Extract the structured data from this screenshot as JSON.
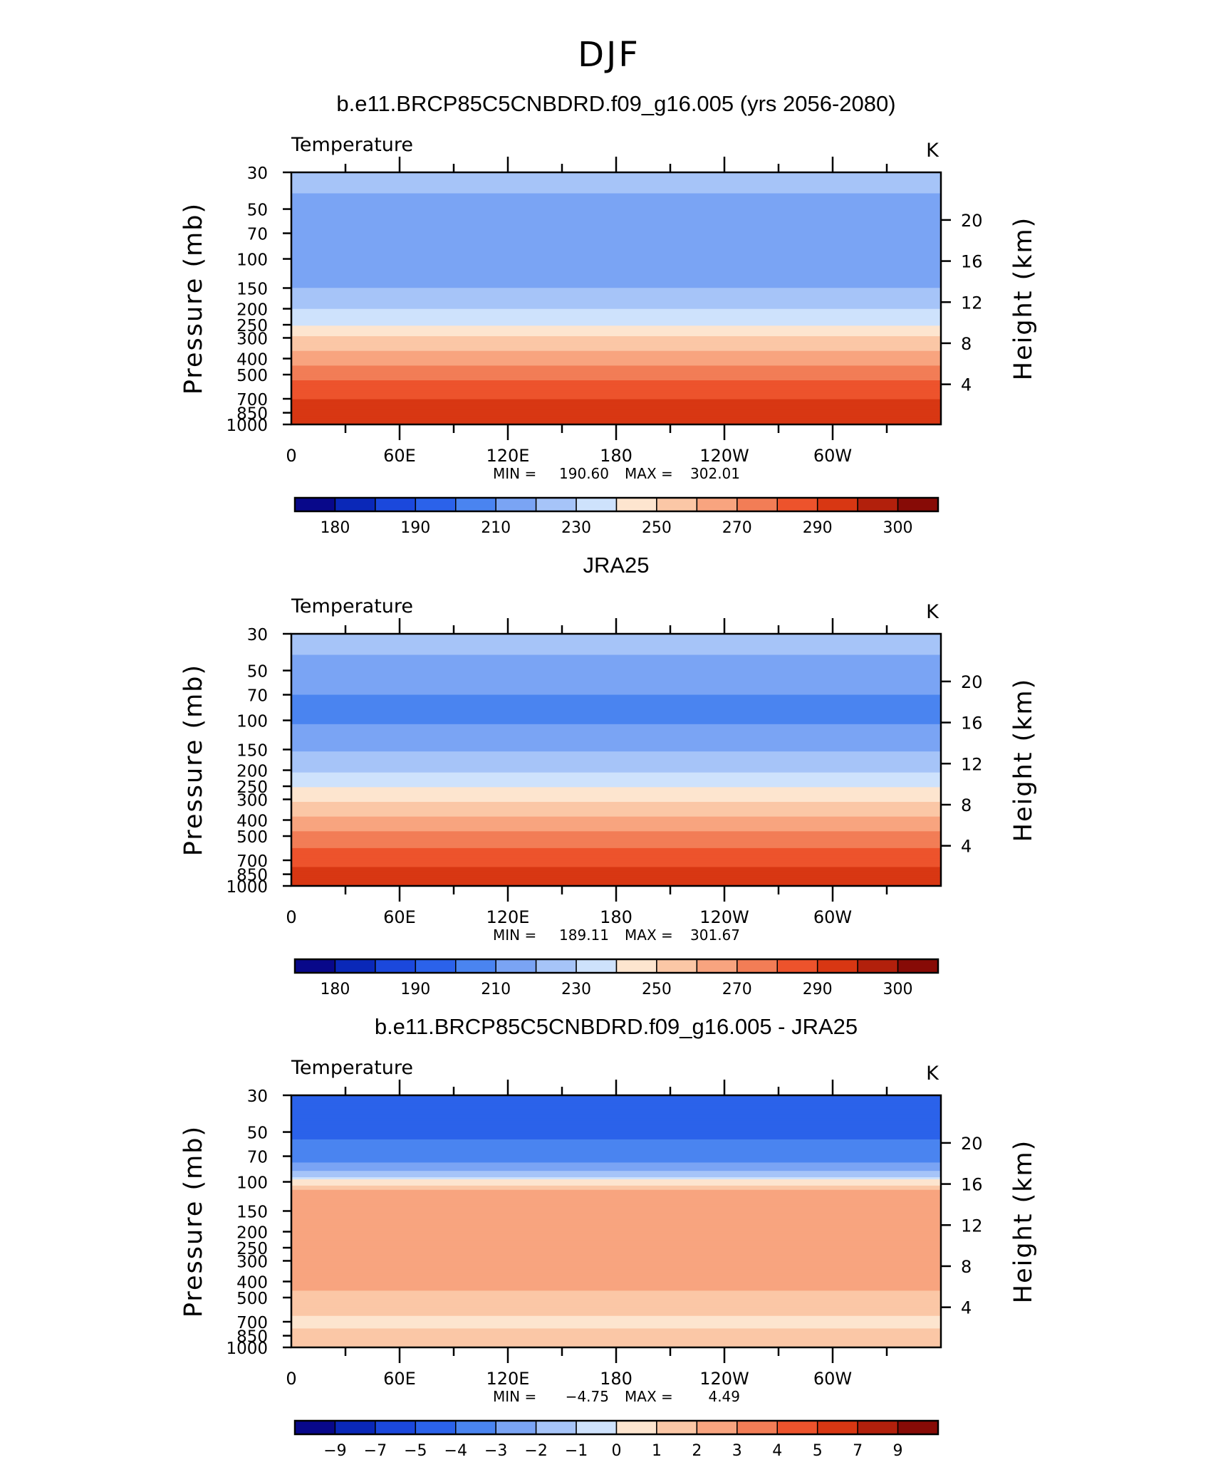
{
  "figure": {
    "season_title": "DJF"
  },
  "chart_data": [
    {
      "type": "heatmap",
      "title": "b.e11.BRCP85C5CNBDRD.f09_g16.005 (yrs 2056-2080)",
      "left_label": "Temperature",
      "units": "K",
      "xlabel": "",
      "ylabel": "Pressure (mb)",
      "y2label": "Height (km)",
      "x_ticks": [
        "0",
        "60E",
        "120E",
        "180",
        "120W",
        "60W"
      ],
      "x_tick_lon": [
        0,
        60,
        120,
        180,
        240,
        300
      ],
      "xlim": [
        0,
        360
      ],
      "y_ticks": [
        "30",
        "50",
        "70",
        "100",
        "150",
        "200",
        "250",
        "300",
        "400",
        "500",
        "700",
        "850",
        "1000"
      ],
      "y_tick_mb": [
        30,
        50,
        70,
        100,
        150,
        200,
        250,
        300,
        400,
        500,
        700,
        850,
        1000
      ],
      "ylim_mb": [
        1000,
        30
      ],
      "y_scale": "log",
      "y2_ticks": [
        "20",
        "16",
        "12",
        "8",
        "4"
      ],
      "y2_tick_km": [
        20,
        16,
        12,
        8,
        4
      ],
      "min_label": "MIN =",
      "min_value": "190.60",
      "max_label": "MAX =",
      "max_value": "302.01",
      "colorbar_labels": [
        "180",
        "190",
        "210",
        "230",
        "250",
        "270",
        "290",
        "300"
      ],
      "colorbar_levels": [
        175,
        180,
        185,
        190,
        200,
        210,
        220,
        230,
        240,
        250,
        260,
        270,
        280,
        290,
        295,
        300
      ],
      "colorbar_colors": [
        "#08088a",
        "#0a28b8",
        "#1b48dc",
        "#2b62ea",
        "#4a84f0",
        "#7aa4f4",
        "#a6c4f8",
        "#cee2fc",
        "#fde5cf",
        "#fbc7a6",
        "#f8a47f",
        "#f27d56",
        "#ed532c",
        "#d83713",
        "#b2200c",
        "#870b06"
      ],
      "z_profile": [
        {
          "p": 30,
          "value": 212
        },
        {
          "p": 40,
          "value": 210
        },
        {
          "p": 50,
          "value": 205
        },
        {
          "p": 70,
          "value": 201
        },
        {
          "p": 100,
          "value": 201
        },
        {
          "p": 125,
          "value": 204
        },
        {
          "p": 150,
          "value": 210
        },
        {
          "p": 200,
          "value": 220
        },
        {
          "p": 250,
          "value": 230
        },
        {
          "p": 300,
          "value": 241
        },
        {
          "p": 400,
          "value": 255
        },
        {
          "p": 500,
          "value": 266
        },
        {
          "p": 600,
          "value": 274
        },
        {
          "p": 700,
          "value": 280
        },
        {
          "p": 850,
          "value": 286
        },
        {
          "p": 925,
          "value": 288
        },
        {
          "p": 1000,
          "value": 290
        }
      ]
    },
    {
      "type": "heatmap",
      "title": "JRA25",
      "left_label": "Temperature",
      "units": "K",
      "xlabel": "",
      "ylabel": "Pressure (mb)",
      "y2label": "Height (km)",
      "x_ticks": [
        "0",
        "60E",
        "120E",
        "180",
        "120W",
        "60W"
      ],
      "x_tick_lon": [
        0,
        60,
        120,
        180,
        240,
        300
      ],
      "xlim": [
        0,
        360
      ],
      "y_ticks": [
        "30",
        "50",
        "70",
        "100",
        "150",
        "200",
        "250",
        "300",
        "400",
        "500",
        "700",
        "850",
        "1000"
      ],
      "y_tick_mb": [
        30,
        50,
        70,
        100,
        150,
        200,
        250,
        300,
        400,
        500,
        700,
        850,
        1000
      ],
      "ylim_mb": [
        1000,
        30
      ],
      "y_scale": "log",
      "y2_ticks": [
        "20",
        "16",
        "12",
        "8",
        "4"
      ],
      "y2_tick_km": [
        20,
        16,
        12,
        8,
        4
      ],
      "min_label": "MIN =",
      "min_value": "189.11",
      "max_label": "MAX =",
      "max_value": "301.67",
      "colorbar_labels": [
        "180",
        "190",
        "210",
        "230",
        "250",
        "270",
        "290",
        "300"
      ],
      "colorbar_levels": [
        175,
        180,
        185,
        190,
        200,
        210,
        220,
        230,
        240,
        250,
        260,
        270,
        280,
        290,
        295,
        300
      ],
      "colorbar_colors": [
        "#08088a",
        "#0a28b8",
        "#1b48dc",
        "#2b62ea",
        "#4a84f0",
        "#7aa4f4",
        "#a6c4f8",
        "#cee2fc",
        "#fde5cf",
        "#fbc7a6",
        "#f8a47f",
        "#f27d56",
        "#ed532c",
        "#d83713",
        "#b2200c",
        "#870b06"
      ],
      "z_profile": [
        {
          "p": 30,
          "value": 213
        },
        {
          "p": 40,
          "value": 210
        },
        {
          "p": 50,
          "value": 205
        },
        {
          "p": 70,
          "value": 200
        },
        {
          "p": 100,
          "value": 199
        },
        {
          "p": 125,
          "value": 203
        },
        {
          "p": 150,
          "value": 209
        },
        {
          "p": 200,
          "value": 219
        },
        {
          "p": 250,
          "value": 229
        },
        {
          "p": 300,
          "value": 239
        },
        {
          "p": 400,
          "value": 253
        },
        {
          "p": 500,
          "value": 263
        },
        {
          "p": 600,
          "value": 271
        },
        {
          "p": 700,
          "value": 277
        },
        {
          "p": 850,
          "value": 284
        },
        {
          "p": 925,
          "value": 287
        },
        {
          "p": 1000,
          "value": 289
        }
      ]
    },
    {
      "type": "heatmap",
      "title": "b.e11.BRCP85C5CNBDRD.f09_g16.005 - JRA25",
      "left_label": "Temperature",
      "units": "K",
      "xlabel": "",
      "ylabel": "Pressure (mb)",
      "y2label": "Height (km)",
      "x_ticks": [
        "0",
        "60E",
        "120E",
        "180",
        "120W",
        "60W"
      ],
      "x_tick_lon": [
        0,
        60,
        120,
        180,
        240,
        300
      ],
      "xlim": [
        0,
        360
      ],
      "y_ticks": [
        "30",
        "50",
        "70",
        "100",
        "150",
        "200",
        "250",
        "300",
        "400",
        "500",
        "700",
        "850",
        "1000"
      ],
      "y_tick_mb": [
        30,
        50,
        70,
        100,
        150,
        200,
        250,
        300,
        400,
        500,
        700,
        850,
        1000
      ],
      "ylim_mb": [
        1000,
        30
      ],
      "y_scale": "log",
      "y2_ticks": [
        "20",
        "16",
        "12",
        "8",
        "4"
      ],
      "y2_tick_km": [
        20,
        16,
        12,
        8,
        4
      ],
      "min_label": "MIN =",
      "min_value": "−4.75",
      "max_label": "MAX =",
      "max_value": "4.49",
      "colorbar_labels": [
        "−9",
        "−7",
        "−5",
        "−4",
        "−3",
        "−2",
        "−1",
        "0",
        "1",
        "2",
        "3",
        "4",
        "5",
        "7",
        "9"
      ],
      "colorbar_levels": [
        -9,
        -7,
        -5,
        -4,
        -3,
        -2,
        -1,
        0,
        1,
        2,
        3,
        4,
        5,
        7,
        9
      ],
      "colorbar_colors": [
        "#08088a",
        "#0a28b8",
        "#1b48dc",
        "#2b62ea",
        "#4a84f0",
        "#7aa4f4",
        "#a6c4f8",
        "#cee2fc",
        "#fde5cf",
        "#fbc7a6",
        "#f8a47f",
        "#f27d56",
        "#ed532c",
        "#d83713",
        "#b2200c",
        "#870b06"
      ],
      "z_profile": [
        {
          "p": 30,
          "value": -4.5
        },
        {
          "p": 50,
          "value": -4.2
        },
        {
          "p": 70,
          "value": -3.6
        },
        {
          "p": 85,
          "value": -2.4
        },
        {
          "p": 95,
          "value": -0.6
        },
        {
          "p": 100,
          "value": 0.4
        },
        {
          "p": 115,
          "value": 2.4
        },
        {
          "p": 150,
          "value": 2.6
        },
        {
          "p": 200,
          "value": 2.8
        },
        {
          "p": 250,
          "value": 2.8
        },
        {
          "p": 300,
          "value": 2.6
        },
        {
          "p": 400,
          "value": 2.3
        },
        {
          "p": 500,
          "value": 1.8
        },
        {
          "p": 700,
          "value": 0.7
        },
        {
          "p": 850,
          "value": 1.4
        },
        {
          "p": 1000,
          "value": 1.6
        }
      ]
    }
  ]
}
